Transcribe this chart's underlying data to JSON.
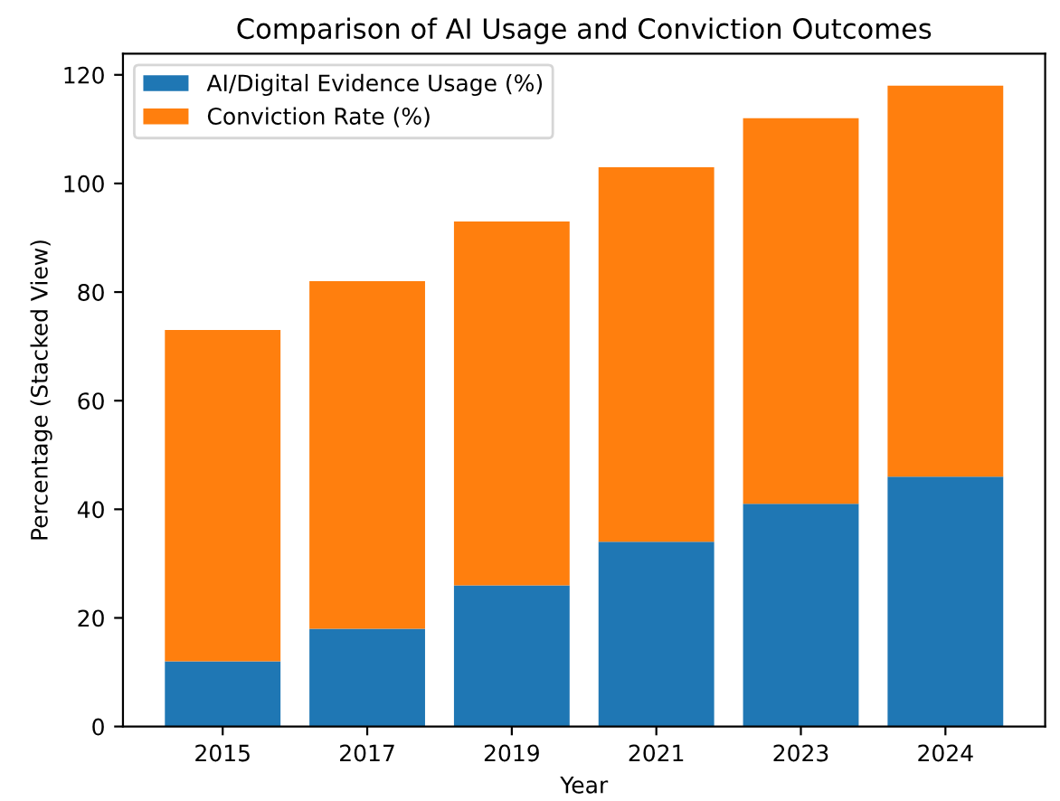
{
  "chart_data": {
    "type": "bar",
    "title": "Comparison of AI Usage and Conviction Outcomes",
    "xlabel": "Year",
    "ylabel": "Percentage (Stacked View)",
    "categories": [
      "2015",
      "2017",
      "2019",
      "2021",
      "2023",
      "2024"
    ],
    "series": [
      {
        "name": "AI/Digital Evidence Usage (%)",
        "color": "#1f77b4",
        "values": [
          12,
          18,
          26,
          34,
          41,
          46
        ]
      },
      {
        "name": "Conviction Rate (%)",
        "color": "#ff7f0e",
        "values": [
          61,
          64,
          67,
          69,
          71,
          72
        ]
      }
    ],
    "stacked": true,
    "ylim": [
      0,
      123.9
    ],
    "yticks": [
      0,
      20,
      40,
      60,
      80,
      100,
      120
    ],
    "legend": "top left",
    "grid": false
  }
}
